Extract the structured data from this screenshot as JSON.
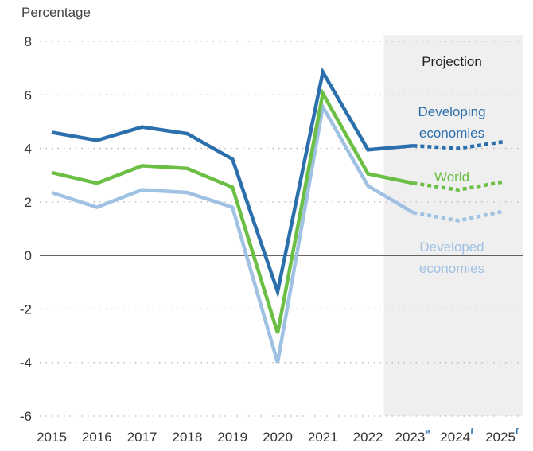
{
  "chart_data": {
    "type": "line",
    "ylabel": "Percentage",
    "ylim": [
      -6,
      8
    ],
    "yticks": [
      8,
      6,
      4,
      2,
      0,
      -2,
      -4,
      -6
    ],
    "ytick_labels": [
      "8",
      "6",
      "4",
      "2",
      "0",
      "-2",
      "-4",
      "-6"
    ],
    "x": [
      "2015",
      "2016",
      "2017",
      "2018",
      "2019",
      "2020",
      "2021",
      "2022",
      "2023",
      "2024",
      "2025"
    ],
    "x_superscripts": [
      "",
      "",
      "",
      "",
      "",
      "",
      "",
      "",
      "e",
      "f",
      "f"
    ],
    "projection_start": "2022",
    "projection_label": "Projection",
    "series": [
      {
        "name": "Developing economies",
        "label_lines": [
          "Developing",
          "economies"
        ],
        "color": "#2c6fad",
        "values": [
          4.6,
          4.3,
          4.8,
          4.55,
          3.6,
          -1.35,
          6.85,
          3.95,
          4.1,
          4.0,
          4.25
        ]
      },
      {
        "name": "World",
        "label_lines": [
          "World"
        ],
        "color": "#6cbf45",
        "values": [
          3.1,
          2.7,
          3.35,
          3.25,
          2.55,
          -2.9,
          6.05,
          3.05,
          2.7,
          2.45,
          2.75
        ]
      },
      {
        "name": "Developed economies",
        "label_lines": [
          "Developed",
          "economies"
        ],
        "color": "#9fc1e2",
        "values": [
          2.35,
          1.8,
          2.45,
          2.35,
          1.8,
          -4.0,
          5.55,
          2.6,
          1.6,
          1.3,
          1.65
        ]
      }
    ]
  }
}
